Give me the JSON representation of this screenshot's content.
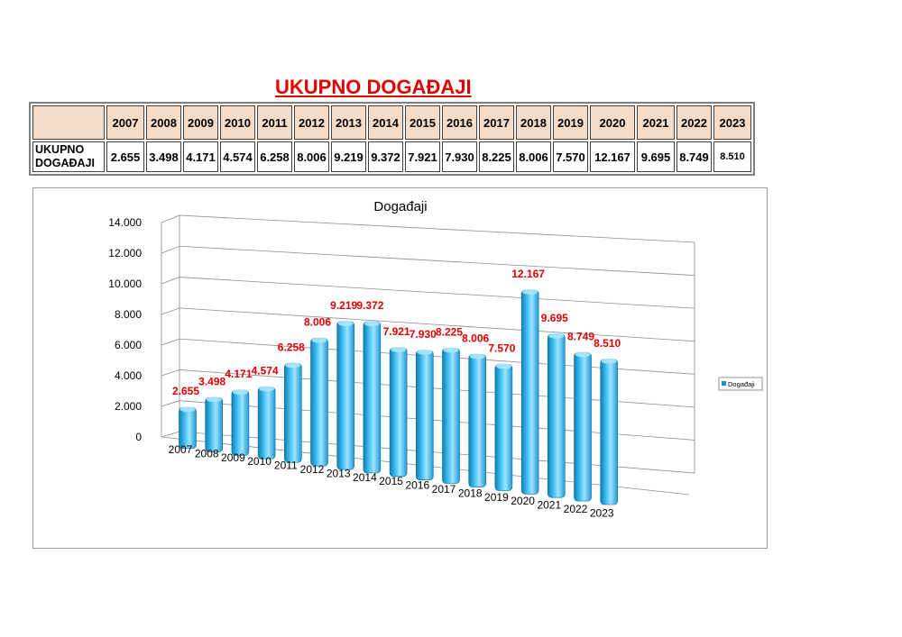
{
  "page": {
    "title": "UKUPNO DOGAĐAJI"
  },
  "table": {
    "row_label": "UKUPNO DOGAĐAJI",
    "row_label_lines": [
      "UKUPNO",
      "DOGAĐAJI"
    ],
    "years": [
      "2007",
      "2008",
      "2009",
      "2010",
      "2011",
      "2012",
      "2013",
      "2014",
      "2015",
      "2016",
      "2017",
      "2018",
      "2019",
      "2020",
      "2021",
      "2022",
      "2023"
    ],
    "values": [
      "2.655",
      "3.498",
      "4.171",
      "4.574",
      "6.258",
      "8.006",
      "9.219",
      "9.372",
      "7.921",
      "7.930",
      "8.225",
      "8.006",
      "7.570",
      "12.167",
      "9.695",
      "8.749",
      "8.510"
    ]
  },
  "chart_data": {
    "type": "bar",
    "title": "Događaji",
    "categories": [
      "2007",
      "2008",
      "2009",
      "2010",
      "2011",
      "2012",
      "2013",
      "2014",
      "2015",
      "2016",
      "2017",
      "2018",
      "2019",
      "2020",
      "2021",
      "2022",
      "2023"
    ],
    "series": [
      {
        "name": "Događaji",
        "values": [
          2655,
          3498,
          4171,
          4574,
          6258,
          8006,
          9219,
          9372,
          7921,
          7930,
          8225,
          8006,
          7570,
          12167,
          9695,
          8749,
          8510
        ],
        "labels": [
          "2.655",
          "3.498",
          "4.171",
          "4.574",
          "6.258",
          "8.006",
          "9.219",
          "9.372",
          "7.921",
          "7.930",
          "8.225",
          "8.006",
          "7.570",
          "12.167",
          "9.695",
          "8.749",
          "8.510"
        ]
      }
    ],
    "ylim": [
      0,
      14000
    ],
    "y_ticks": [
      "0",
      "2.000",
      "4.000",
      "6.000",
      "8.000",
      "10.000",
      "12.000",
      "14.000"
    ],
    "xlabel": "",
    "ylabel": "",
    "grid": true,
    "legend_position": "right",
    "colors": {
      "bar": "#29abe2",
      "bar_dark": "#0b6f9c",
      "bar_light": "#8fdcff",
      "data_label": "#e00000"
    }
  }
}
